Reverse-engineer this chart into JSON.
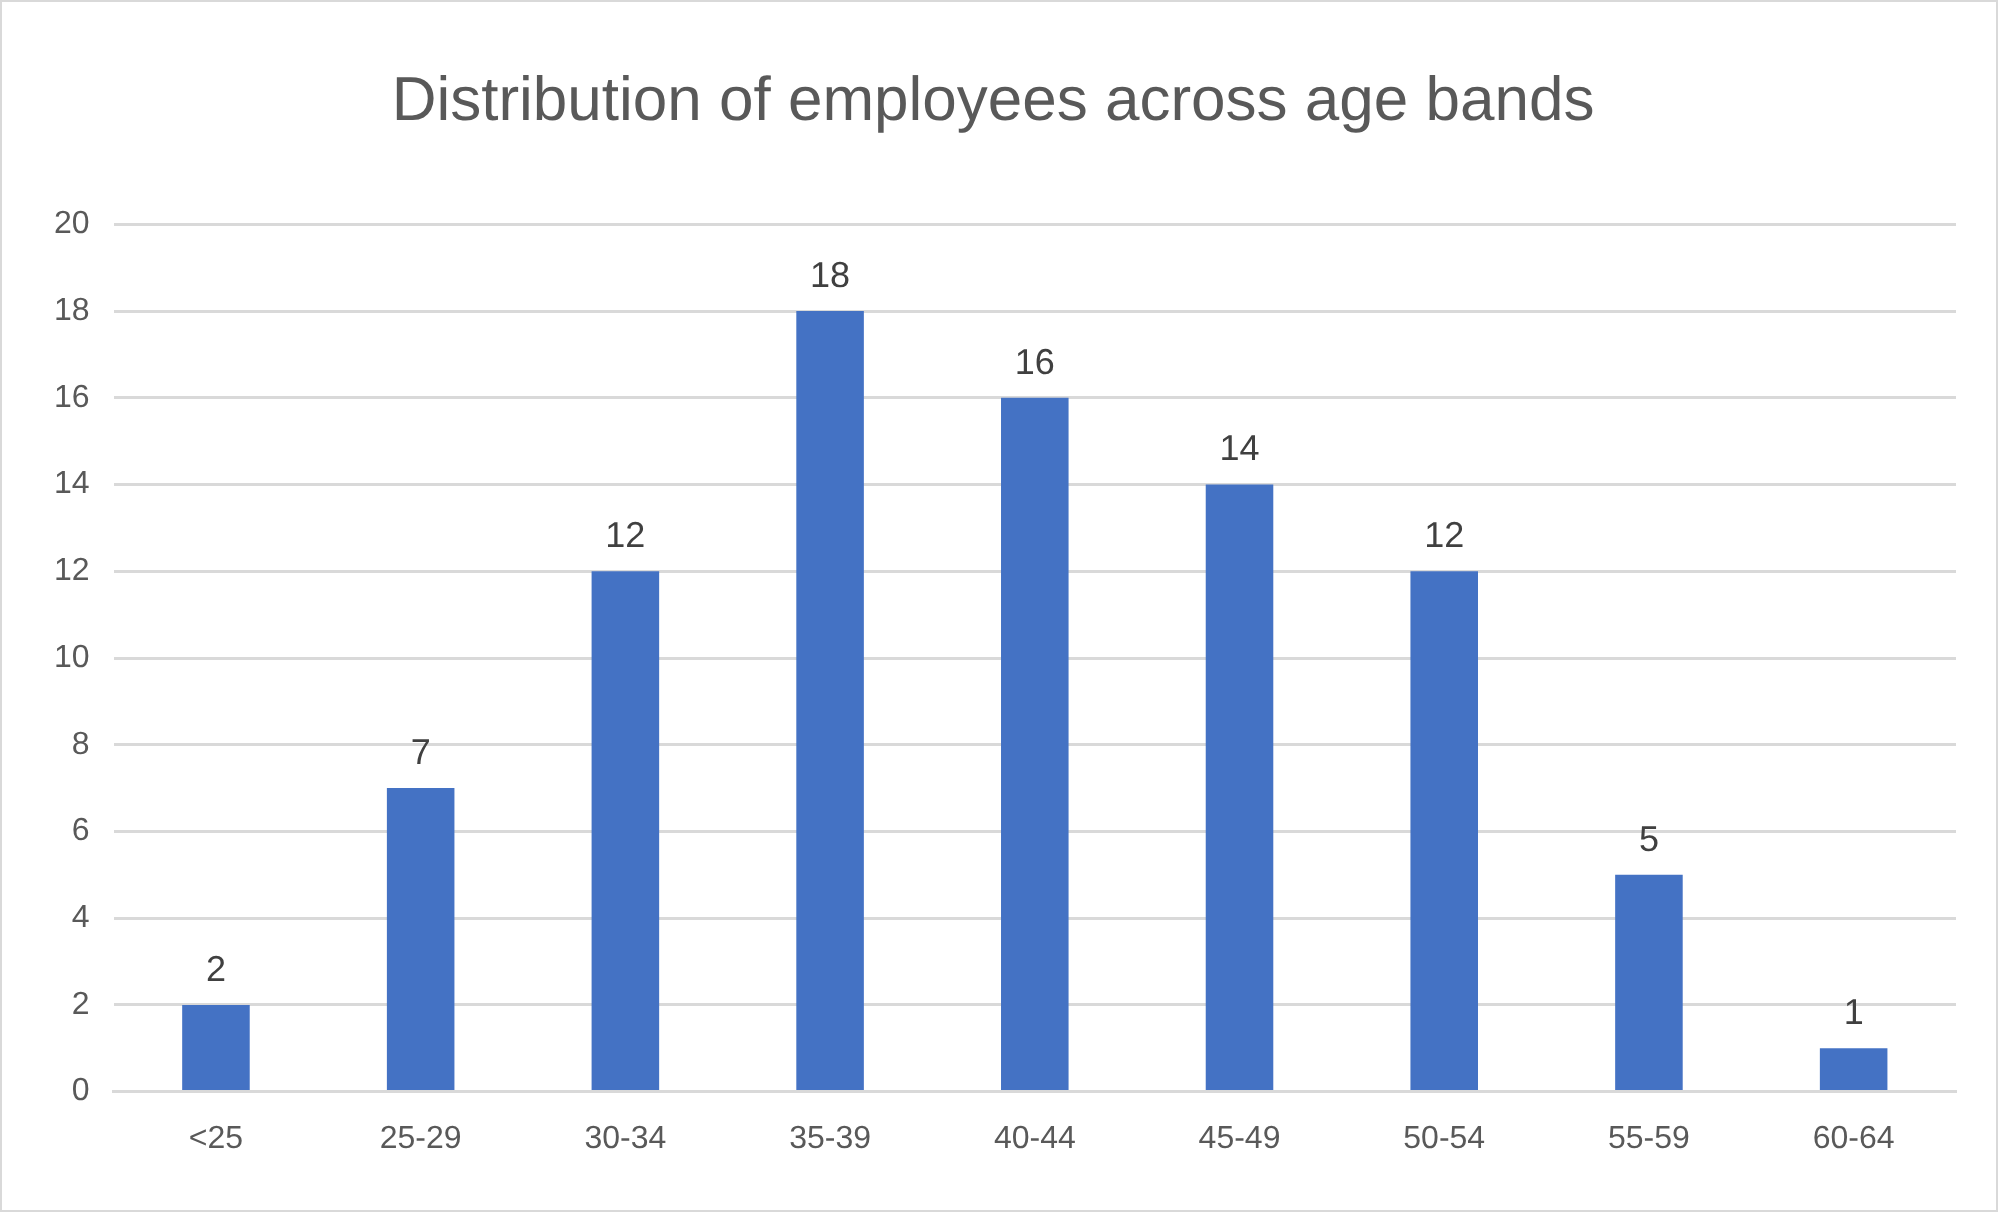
{
  "chart_data": {
    "type": "bar",
    "title": "Distribution of employees across age bands",
    "categories": [
      "<25",
      "25-29",
      "30-34",
      "35-39",
      "40-44",
      "45-49",
      "50-54",
      "55-59",
      "60-64"
    ],
    "values": [
      2,
      7,
      12,
      18,
      16,
      14,
      12,
      5,
      1
    ],
    "color": "#4472c4",
    "ylim": [
      0,
      20
    ],
    "yticks": [
      0,
      2,
      4,
      6,
      8,
      10,
      12,
      14,
      16,
      18,
      20
    ],
    "grid": "y",
    "data_labels": true,
    "legend": false
  }
}
